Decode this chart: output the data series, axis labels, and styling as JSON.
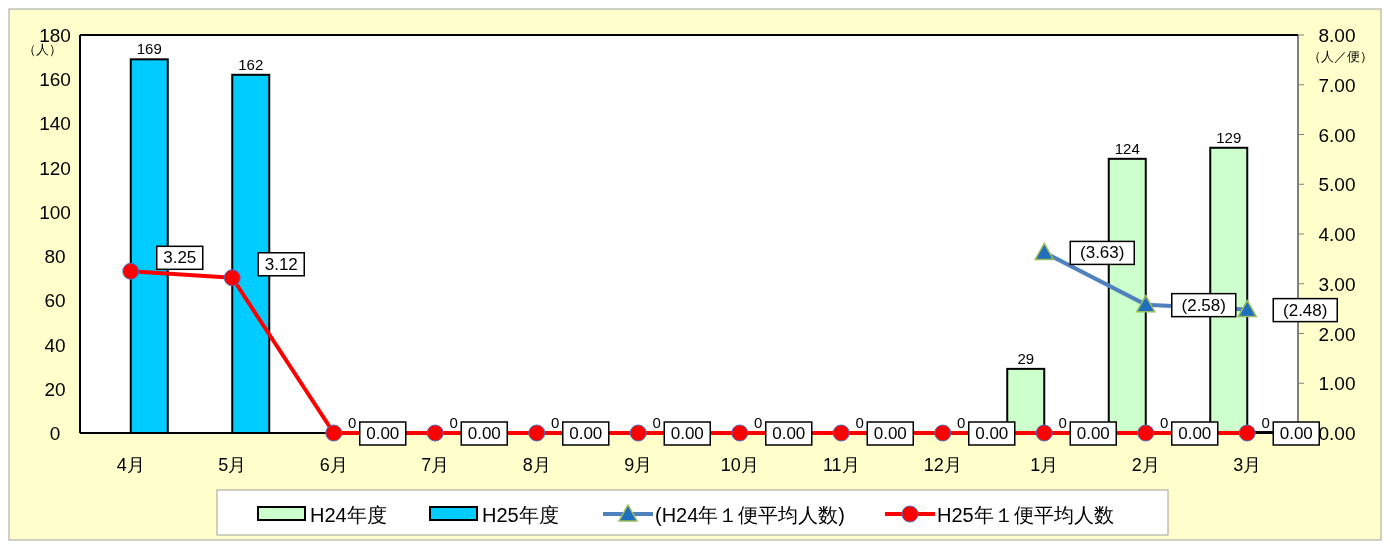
{
  "chart_data": {
    "type": "bar",
    "categories": [
      "4月",
      "5月",
      "6月",
      "7月",
      "8月",
      "9月",
      "10月",
      "11月",
      "12月",
      "1月",
      "2月",
      "3月"
    ],
    "series": [
      {
        "name": "H24年度",
        "color": "#ccffcc",
        "values": [
          null,
          null,
          null,
          null,
          null,
          null,
          null,
          null,
          null,
          29,
          124,
          129
        ],
        "value_labels": [
          null,
          null,
          null,
          null,
          null,
          null,
          null,
          null,
          null,
          "29",
          "124",
          "129"
        ]
      },
      {
        "name": "H25年度",
        "color": "#00ccff",
        "values": [
          169,
          162,
          0,
          0,
          0,
          0,
          0,
          0,
          0,
          0,
          0,
          0
        ],
        "value_labels": [
          "169",
          "162",
          "0",
          "0",
          "0",
          "0",
          "0",
          "0",
          "0",
          "0",
          "0",
          "0"
        ]
      },
      {
        "name": "(H24年１便平均人数)",
        "type": "line",
        "axis": "y2",
        "marker": "triangle",
        "color": "#4f81bd",
        "values": [
          null,
          null,
          null,
          null,
          null,
          null,
          null,
          null,
          null,
          3.63,
          2.58,
          2.48
        ],
        "value_labels": [
          null,
          null,
          null,
          null,
          null,
          null,
          null,
          null,
          null,
          "(3.63)",
          "(2.58)",
          "(2.48)"
        ]
      },
      {
        "name": "H25年１便平均人数",
        "type": "line",
        "axis": "y2",
        "marker": "circle",
        "color": "#ff0000",
        "values": [
          3.25,
          3.12,
          0,
          0,
          0,
          0,
          0,
          0,
          0,
          0,
          0,
          0
        ],
        "value_labels": [
          "3.25",
          "3.12",
          "0.00",
          "0.00",
          "0.00",
          "0.00",
          "0.00",
          "0.00",
          "0.00",
          "0.00",
          "0.00",
          "0.00"
        ]
      }
    ],
    "ylabel": "（人）",
    "y2label": "（人／便）",
    "ylim": [
      0,
      180
    ],
    "yticks": [
      0,
      20,
      40,
      60,
      80,
      100,
      120,
      140,
      160,
      180
    ],
    "y2lim": [
      0,
      8
    ],
    "y2ticks": [
      {
        "value": 0,
        "label": "0.00"
      },
      {
        "value": 1,
        "label": "1.00"
      },
      {
        "value": 2,
        "label": "2.00"
      },
      {
        "value": 3,
        "label": "3.00"
      },
      {
        "value": 4,
        "label": "4.00"
      },
      {
        "value": 5,
        "label": "5.00"
      },
      {
        "value": 6,
        "label": "6.00"
      },
      {
        "value": 7,
        "label": "7.00"
      },
      {
        "value": 8,
        "label": "8.00"
      }
    ],
    "legend": "bottom",
    "grid": false
  }
}
